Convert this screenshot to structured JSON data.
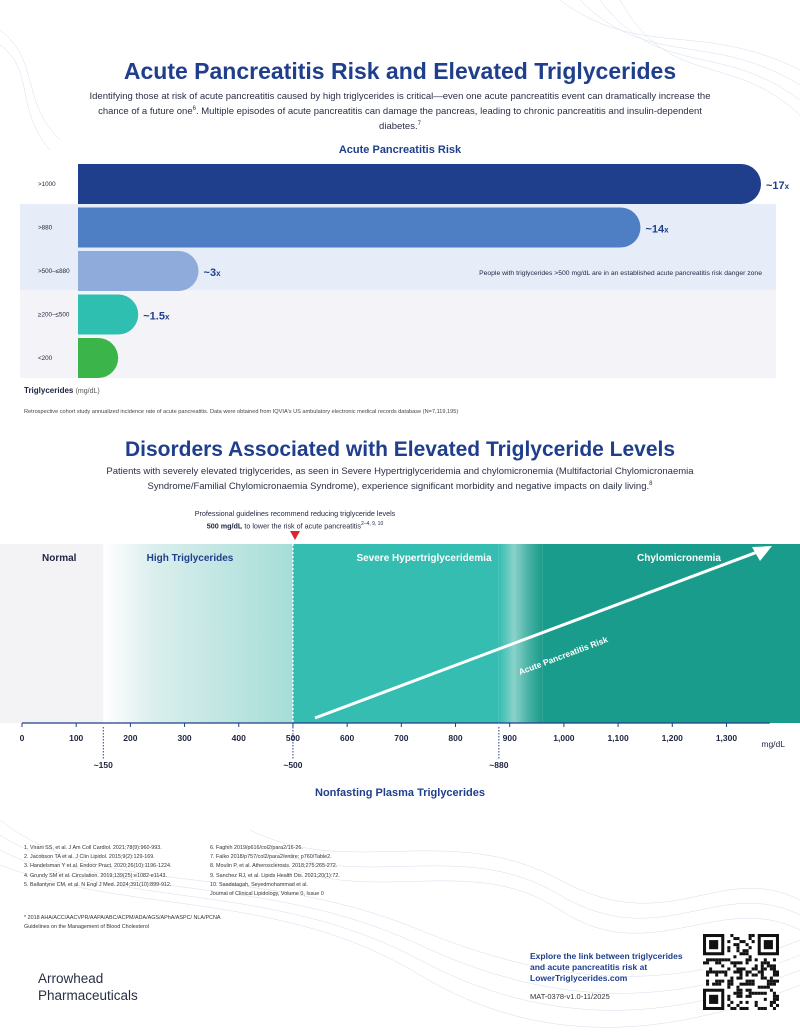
{
  "header": {
    "title": "Acute Pancreatitis Risk and Elevated Triglycerides",
    "intro_a": "Identifying those at risk of acute pancreatitis caused by high triglycerides is critical—even one acute pancreatitis event can dramatically increase the chance of a future one",
    "intro_sup1": "6",
    "intro_b": ". Multiple episodes of acute pancreatitis can damage the pancreas, leading to chronic pancreatitis and insulin-dependent diabetes.",
    "intro_sup2": "7"
  },
  "chart_data": {
    "type": "bar",
    "orientation": "horizontal",
    "title": "Acute Pancreatitis Risk",
    "categories": [
      ">1000",
      ">880",
      ">500–≤880",
      "≥200–≤500",
      "<200"
    ],
    "values": [
      17,
      14,
      3,
      1.5,
      1
    ],
    "data_labels": [
      "~17x",
      "~14x",
      "~3x",
      "~1.5x",
      ""
    ],
    "colors": [
      "#1f3e8c",
      "#4e7fc4",
      "#8fabdc",
      "#2fbfb0",
      "#3bb54a"
    ],
    "xmax": 17,
    "ylabel": "Triglycerides",
    "ylabel_unit": "(mg/dL)",
    "danger_zone_note": "People with triglycerides >500 mg/dL are in an established acute pancreatitis risk danger zone"
  },
  "chart_note": "Retrospective cohort study annualized incidence rate of acute pancreatitis. Data were obtained from IQVIA's US ambulatory electronic medical records database (N=7,119,195)",
  "disorders": {
    "title": "Disorders Associated with Elevated Triglyceride Levels",
    "intro": "Patients with severely elevated triglycerides, as seen in Severe Hypertriglyceridemia and chylomicronemia (Multifactorial Chylomicronaemia Syndrome/Familial Chylomicronaemia Syndrome), experience significant morbidity and negative impacts on daily living.",
    "intro_sup": "8",
    "guideline_line1": "Professional guidelines recommend reducing triglyceride levels",
    "guideline_bold": "500 mg/dL",
    "guideline_line2": " to lower the risk of acute pancreatitis",
    "guideline_sup": "2–4, 9, 10",
    "zones": [
      "Normal",
      "High Triglycerides",
      "Severe Hypertriglyceridemia",
      "Chylomicronemia"
    ],
    "arrow_label": "Acute Pancreatitis Risk",
    "ticks": [
      0,
      100,
      200,
      300,
      400,
      500,
      600,
      700,
      800,
      900,
      1000,
      1100,
      1200,
      1300
    ],
    "tick_labels": [
      "0",
      "100",
      "200",
      "300",
      "400",
      "500",
      "600",
      "700",
      "800",
      "900",
      "1,000",
      "1,100",
      "1,200",
      "1,300"
    ],
    "unit": "mg/dL",
    "markers": [
      {
        "value": 150,
        "label": "~150"
      },
      {
        "value": 500,
        "label": "~500"
      },
      {
        "value": 880,
        "label": "~880"
      }
    ],
    "x_title": "Nonfasting Plasma Triglycerides"
  },
  "references": {
    "col1": [
      "1. Virani SS, et al. J Am Coll Cardiol. 2021;78(9):960-993.",
      "2. Jacobson TA et al. J Clin Lipidol. 2015;9(2):129-169.",
      "3. Handelsman Y et al. Endocr Pract. 2020;26(10):1196-1224.",
      "4. Grundy SM et al. Circulation. 2019;139(25):e1082-e1143.",
      "5. Ballantyne CM, et al. N Engl J Med. 2024;391(10):899-912."
    ],
    "col2": [
      "6. Faghih 2019/p616/col2/para2/16-26.",
      "7. Falko 2018/p757/col2/para2/entire; p760/Table2.",
      "8. Moulin P, et al. Atherosclerosis. 2018;275:265-272.",
      "9. Sanchez RJ, et al. Lipids Health Dis. 2021;20(1):72.",
      "10. Saadatagah, Seyedmohammad et al.",
      "Journal of Clinical Lipidology, Volume 0, Issue 0"
    ],
    "footnote": "* 2018 AHA/ACC/AACVPR/AAPA/ABC/ACPM/ADA/AGS/APhA/ASPC/ NLA/PCNA Guidelines on the Management of Blood Cholesterol"
  },
  "footer": {
    "logo_line1": "Arrowhead",
    "logo_line2": "Pharmaceuticals",
    "cta": "Explore the link between triglycerides and acute pancreatitis risk at LowerTriglycerides.com",
    "code": "MAT-0378-v1.0-11/2025"
  },
  "colors": {
    "navy": "#1f3e8c",
    "teal": "#2fbfb0",
    "dark_teal": "#1a9c8c",
    "green": "#3bb54a"
  }
}
